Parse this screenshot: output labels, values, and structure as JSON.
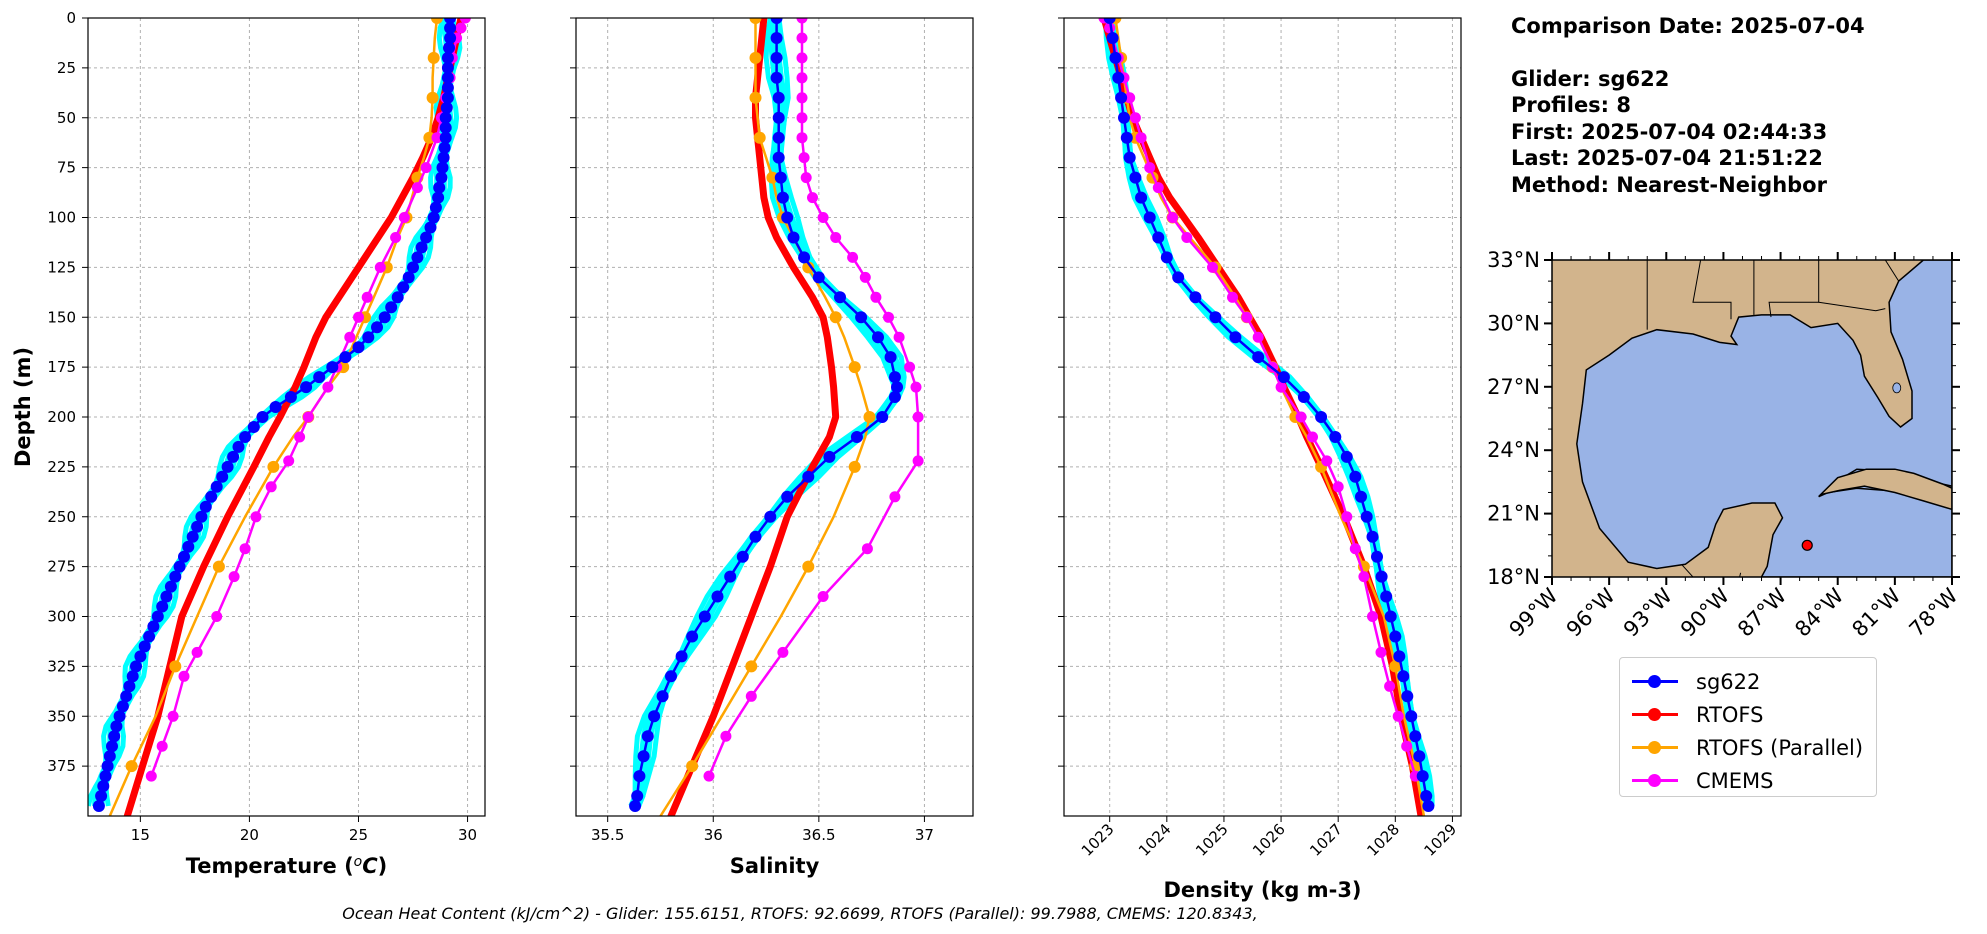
{
  "info": {
    "comparison_date": "Comparison Date: 2025-07-04",
    "glider": "Glider: sg622",
    "profiles": "Profiles: 8",
    "first": "First: 2025-07-04 02:44:33",
    "last": "Last: 2025-07-04 21:51:22",
    "method": "Method: Nearest-Neighbor"
  },
  "footer": "Ocean Heat Content (kJ/cm^2) - Glider: 155.6151,  RTOFS: 92.6699,  RTOFS (Parallel): 99.7988,  CMEMS: 120.8343,",
  "colors": {
    "glider": "#0000ff",
    "glider_spread": "#00ffff",
    "rtofs": "#ff0000",
    "rtofs_parallel": "#ffa500",
    "cmems": "#ff00ff",
    "land": "#d2b48c",
    "ocean": "#99b3e6"
  },
  "legend": [
    {
      "label": "sg622",
      "color": "#0000ff"
    },
    {
      "label": "RTOFS",
      "color": "#ff0000"
    },
    {
      "label": "RTOFS (Parallel)",
      "color": "#ffa500"
    },
    {
      "label": "CMEMS",
      "color": "#ff00ff"
    }
  ],
  "chart_data": [
    {
      "type": "line",
      "xlabel": "Temperature (°C)",
      "ylabel": "Depth (m)",
      "xlim": [
        12.6,
        30.8
      ],
      "ylim": [
        400,
        0
      ],
      "xticks": [
        15,
        20,
        25,
        30
      ],
      "yticks": [
        0,
        25,
        50,
        75,
        100,
        125,
        150,
        175,
        200,
        225,
        250,
        275,
        300,
        325,
        350,
        375
      ],
      "grid": true,
      "series": [
        {
          "name": "sg622",
          "depth": [
            0,
            5,
            10,
            15,
            20,
            25,
            30,
            35,
            40,
            45,
            50,
            55,
            60,
            65,
            70,
            75,
            80,
            85,
            90,
            95,
            100,
            105,
            110,
            115,
            120,
            125,
            130,
            135,
            140,
            145,
            150,
            155,
            160,
            165,
            170,
            175,
            180,
            185,
            190,
            195,
            200,
            205,
            210,
            215,
            220,
            225,
            230,
            235,
            240,
            245,
            250,
            255,
            260,
            265,
            270,
            275,
            280,
            285,
            290,
            295,
            300,
            305,
            310,
            315,
            320,
            325,
            330,
            335,
            340,
            345,
            350,
            355,
            360,
            365,
            370,
            375,
            380,
            385,
            390,
            395
          ],
          "values": [
            29.2,
            29.2,
            29.2,
            29.15,
            29.1,
            29.1,
            29.1,
            29.1,
            29.1,
            29.05,
            29.0,
            29.0,
            29.0,
            28.95,
            28.9,
            28.85,
            28.8,
            28.7,
            28.65,
            28.55,
            28.45,
            28.3,
            28.1,
            27.9,
            27.7,
            27.5,
            27.3,
            27.05,
            26.8,
            26.5,
            26.2,
            25.85,
            25.45,
            25.0,
            24.4,
            23.8,
            23.2,
            22.6,
            21.9,
            21.2,
            20.6,
            20.2,
            19.8,
            19.5,
            19.25,
            19.0,
            18.75,
            18.5,
            18.25,
            18.0,
            17.8,
            17.6,
            17.4,
            17.2,
            17.0,
            16.8,
            16.6,
            16.4,
            16.2,
            16.0,
            15.8,
            15.6,
            15.4,
            15.2,
            15.0,
            14.8,
            14.65,
            14.5,
            14.35,
            14.2,
            14.05,
            13.9,
            13.8,
            13.7,
            13.6,
            13.5,
            13.4,
            13.3,
            13.2,
            13.1
          ]
        },
        {
          "name": "RTOFS",
          "depth": [
            0,
            10,
            20,
            30,
            40,
            50,
            60,
            70,
            80,
            90,
            100,
            110,
            125,
            140,
            150,
            160,
            175,
            185,
            200,
            210,
            225,
            250,
            275,
            300,
            325,
            350,
            375,
            400
          ],
          "values": [
            29.7,
            29.5,
            29.3,
            29.1,
            28.9,
            28.65,
            28.35,
            27.95,
            27.5,
            27.0,
            26.5,
            25.9,
            25.0,
            24.1,
            23.5,
            23.05,
            22.5,
            22.1,
            21.4,
            20.9,
            20.2,
            19.0,
            17.9,
            16.9,
            16.35,
            15.8,
            15.1,
            14.4
          ]
        },
        {
          "name": "RTOFS (Parallel)",
          "depth": [
            0,
            10,
            20,
            30,
            40,
            50,
            60,
            70,
            80,
            90,
            100,
            110,
            125,
            140,
            150,
            160,
            175,
            185,
            200,
            210,
            225,
            250,
            275,
            300,
            325,
            350,
            375,
            400
          ],
          "values": [
            28.6,
            28.5,
            28.45,
            28.4,
            28.4,
            28.35,
            28.25,
            28.0,
            27.7,
            27.45,
            27.2,
            26.8,
            26.3,
            25.7,
            25.3,
            24.9,
            24.3,
            23.6,
            22.7,
            22.0,
            21.1,
            19.8,
            18.6,
            17.6,
            16.6,
            15.7,
            14.6,
            13.6
          ]
        },
        {
          "name": "CMEMS",
          "depth": [
            0,
            5,
            10,
            20,
            30,
            40,
            50,
            60,
            75,
            85,
            100,
            110,
            125,
            140,
            150,
            160,
            175,
            185,
            200,
            210,
            222,
            235,
            250,
            266,
            280,
            300,
            318,
            330,
            350,
            365,
            380
          ],
          "values": [
            29.9,
            29.7,
            29.5,
            29.3,
            29.2,
            29.0,
            28.8,
            28.6,
            28.1,
            27.7,
            27.1,
            26.7,
            26.0,
            25.4,
            25.0,
            24.6,
            24.0,
            23.6,
            22.7,
            22.3,
            21.8,
            21.0,
            20.3,
            19.8,
            19.3,
            18.5,
            17.6,
            17.0,
            16.5,
            16.0,
            15.5
          ]
        }
      ]
    },
    {
      "type": "line",
      "xlabel": "Salinity",
      "ylim": [
        400,
        0
      ],
      "xlim": [
        35.35,
        37.23
      ],
      "xticks": [
        35.5,
        36.0,
        36.5,
        37.0
      ],
      "grid": true,
      "series": [
        {
          "name": "sg622",
          "depth": [
            0,
            10,
            20,
            30,
            40,
            50,
            60,
            70,
            80,
            90,
            100,
            110,
            120,
            130,
            140,
            150,
            160,
            170,
            180,
            185,
            190,
            200,
            210,
            220,
            230,
            240,
            250,
            260,
            270,
            280,
            290,
            300,
            310,
            320,
            330,
            340,
            350,
            360,
            370,
            380,
            390,
            395
          ],
          "values": [
            36.3,
            36.3,
            36.3,
            36.3,
            36.31,
            36.31,
            36.31,
            36.31,
            36.32,
            36.33,
            36.35,
            36.38,
            36.43,
            36.5,
            36.6,
            36.7,
            36.78,
            36.84,
            36.86,
            36.87,
            36.86,
            36.8,
            36.68,
            36.55,
            36.45,
            36.35,
            36.27,
            36.2,
            36.14,
            36.08,
            36.02,
            35.96,
            35.9,
            35.85,
            35.8,
            35.76,
            35.72,
            35.69,
            35.67,
            35.65,
            35.64,
            35.63
          ]
        },
        {
          "name": "RTOFS",
          "depth": [
            0,
            10,
            20,
            30,
            40,
            50,
            60,
            70,
            80,
            90,
            100,
            110,
            125,
            140,
            150,
            160,
            175,
            185,
            200,
            210,
            225,
            250,
            275,
            300,
            325,
            350,
            375,
            400
          ],
          "values": [
            36.24,
            36.23,
            36.22,
            36.21,
            36.2,
            36.2,
            36.21,
            36.22,
            36.23,
            36.24,
            36.26,
            36.3,
            36.38,
            36.47,
            36.52,
            36.54,
            36.56,
            36.57,
            36.58,
            36.55,
            36.47,
            36.35,
            36.27,
            36.18,
            36.09,
            36.0,
            35.9,
            35.8
          ]
        },
        {
          "name": "RTOFS (Parallel)",
          "depth": [
            0,
            10,
            20,
            30,
            40,
            50,
            60,
            70,
            80,
            90,
            100,
            110,
            125,
            140,
            150,
            160,
            175,
            185,
            200,
            210,
            225,
            250,
            275,
            300,
            325,
            350,
            375,
            400
          ],
          "values": [
            36.2,
            36.2,
            36.2,
            36.2,
            36.2,
            36.21,
            36.22,
            36.25,
            36.28,
            36.3,
            36.33,
            36.38,
            36.45,
            36.53,
            36.58,
            36.62,
            36.67,
            36.7,
            36.74,
            36.72,
            36.67,
            36.57,
            36.45,
            36.32,
            36.18,
            36.04,
            35.9,
            35.75
          ]
        },
        {
          "name": "CMEMS",
          "depth": [
            0,
            10,
            20,
            30,
            40,
            50,
            60,
            70,
            80,
            90,
            100,
            110,
            120,
            130,
            140,
            150,
            160,
            175,
            185,
            200,
            222,
            240,
            266,
            290,
            318,
            340,
            360,
            380
          ],
          "values": [
            36.42,
            36.42,
            36.42,
            36.42,
            36.42,
            36.42,
            36.42,
            36.43,
            36.44,
            36.47,
            36.52,
            36.58,
            36.66,
            36.72,
            36.77,
            36.83,
            36.88,
            36.93,
            36.96,
            36.97,
            36.97,
            36.86,
            36.73,
            36.52,
            36.33,
            36.18,
            36.06,
            35.98
          ]
        }
      ]
    },
    {
      "type": "line",
      "xlabel": "Density (kg m-3)",
      "ylim": [
        400,
        0
      ],
      "xlim": [
        1022.2,
        1029.15
      ],
      "xticks": [
        1023,
        1024,
        1025,
        1026,
        1027,
        1028,
        1029
      ],
      "grid": true,
      "series": [
        {
          "name": "sg622",
          "depth": [
            0,
            10,
            20,
            30,
            40,
            50,
            60,
            70,
            80,
            90,
            100,
            110,
            120,
            130,
            140,
            150,
            160,
            170,
            180,
            190,
            200,
            210,
            220,
            230,
            240,
            250,
            260,
            270,
            280,
            290,
            300,
            310,
            320,
            330,
            340,
            350,
            360,
            370,
            380,
            390,
            395
          ],
          "values": [
            1023.0,
            1023.05,
            1023.1,
            1023.15,
            1023.2,
            1023.25,
            1023.3,
            1023.35,
            1023.45,
            1023.55,
            1023.7,
            1023.85,
            1024.0,
            1024.2,
            1024.5,
            1024.85,
            1025.2,
            1025.6,
            1026.05,
            1026.4,
            1026.7,
            1026.95,
            1027.15,
            1027.3,
            1027.4,
            1027.5,
            1027.6,
            1027.68,
            1027.76,
            1027.84,
            1027.92,
            1028.0,
            1028.07,
            1028.14,
            1028.21,
            1028.28,
            1028.35,
            1028.42,
            1028.48,
            1028.54,
            1028.58
          ]
        },
        {
          "name": "RTOFS",
          "depth": [
            0,
            10,
            20,
            30,
            40,
            50,
            60,
            70,
            80,
            90,
            100,
            110,
            125,
            140,
            150,
            160,
            175,
            185,
            200,
            210,
            225,
            250,
            275,
            300,
            325,
            350,
            375,
            400
          ],
          "values": [
            1022.9,
            1023.0,
            1023.1,
            1023.2,
            1023.3,
            1023.4,
            1023.55,
            1023.7,
            1023.85,
            1024.05,
            1024.3,
            1024.55,
            1024.9,
            1025.25,
            1025.45,
            1025.65,
            1025.9,
            1026.05,
            1026.3,
            1026.45,
            1026.7,
            1027.1,
            1027.45,
            1027.75,
            1027.95,
            1028.1,
            1028.3,
            1028.45
          ]
        },
        {
          "name": "RTOFS (Parallel)",
          "depth": [
            0,
            10,
            20,
            30,
            40,
            50,
            60,
            70,
            80,
            90,
            100,
            110,
            125,
            140,
            150,
            160,
            175,
            185,
            200,
            210,
            225,
            250,
            275,
            300,
            325,
            350,
            375,
            400
          ],
          "values": [
            1023.1,
            1023.15,
            1023.2,
            1023.25,
            1023.3,
            1023.35,
            1023.45,
            1023.6,
            1023.75,
            1023.9,
            1024.1,
            1024.4,
            1024.85,
            1025.2,
            1025.4,
            1025.6,
            1025.85,
            1026.0,
            1026.25,
            1026.45,
            1026.7,
            1027.05,
            1027.45,
            1027.8,
            1028.0,
            1028.15,
            1028.35,
            1028.5
          ]
        },
        {
          "name": "CMEMS",
          "depth": [
            0,
            5,
            10,
            20,
            30,
            40,
            50,
            60,
            75,
            85,
            100,
            110,
            125,
            140,
            150,
            160,
            175,
            185,
            200,
            210,
            222,
            235,
            250,
            266,
            280,
            300,
            318,
            335,
            350,
            365,
            380
          ],
          "values": [
            1022.9,
            1023.0,
            1023.05,
            1023.15,
            1023.25,
            1023.35,
            1023.45,
            1023.55,
            1023.7,
            1023.85,
            1024.1,
            1024.35,
            1024.8,
            1025.15,
            1025.4,
            1025.6,
            1025.85,
            1026.0,
            1026.35,
            1026.55,
            1026.8,
            1027.0,
            1027.15,
            1027.3,
            1027.45,
            1027.6,
            1027.75,
            1027.9,
            1028.05,
            1028.2,
            1028.35
          ]
        }
      ]
    }
  ],
  "map": {
    "lat_ticks": [
      "33°N",
      "30°N",
      "27°N",
      "24°N",
      "21°N",
      "18°N"
    ],
    "lon_ticks": [
      "99°W",
      "96°W",
      "93°W",
      "90°W",
      "87°W",
      "84°W",
      "81°W",
      "78°W"
    ],
    "extent": {
      "lon_min": -99,
      "lon_max": -78,
      "lat_min": 18,
      "lat_max": 33
    },
    "marker": {
      "lon": -85.6,
      "lat": 19.5
    }
  }
}
